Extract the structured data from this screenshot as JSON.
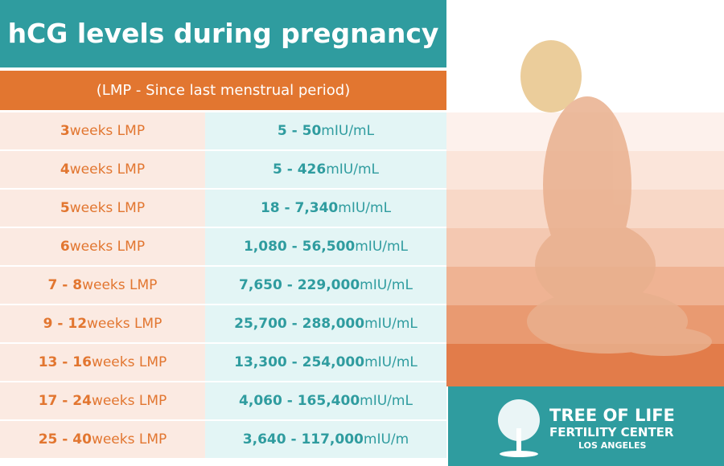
{
  "header": {
    "title": "hCG levels during pregnancy",
    "subtitle": "(LMP - Since last menstrual period)"
  },
  "table": {
    "rows": [
      {
        "weeks": "3",
        "weeks_unit": "weeks LMP",
        "range": "5 - 50",
        "unit": "mIU/mL"
      },
      {
        "weeks": "4",
        "weeks_unit": "weeks LMP",
        "range": "5 - 426",
        "unit": "mIU/mL"
      },
      {
        "weeks": "5",
        "weeks_unit": "weeks LMP",
        "range": "18 - 7,340",
        "unit": "mIU/mL"
      },
      {
        "weeks": "6",
        "weeks_unit": "weeks LMP",
        "range": "1,080 - 56,500",
        "unit": "mIU/mL"
      },
      {
        "weeks": "7 - 8",
        "weeks_unit": "weeks LMP",
        "range": "7,650 - 229,000",
        "unit": "mIU/mL"
      },
      {
        "weeks": "9 - 12",
        "weeks_unit": "weeks LMP",
        "range": "25,700 - 288,000",
        "unit": "mIU/mL"
      },
      {
        "weeks": "13 - 16",
        "weeks_unit": "weeks LMP",
        "range": "13,300 - 254,000",
        "unit": "mIU/mL"
      },
      {
        "weeks": "17 - 24",
        "weeks_unit": "weeks LMP",
        "range": "4,060 - 165,400",
        "unit": "mIU/mL"
      },
      {
        "weeks": "25 - 40",
        "weeks_unit": "weeks LMP",
        "range": "3,640 - 117,000",
        "unit": "mIU/m"
      }
    ]
  },
  "logo": {
    "line1": "TREE OF LIFE",
    "line2": "FERTILITY CENTER",
    "line3": "LOS ANGELES"
  }
}
